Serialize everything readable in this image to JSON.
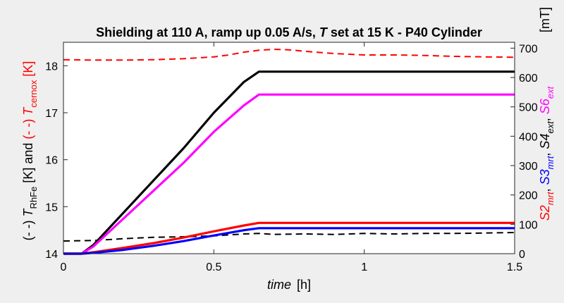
{
  "chart_data": {
    "type": "line",
    "title": {
      "pre": "Shielding at 110 A, ramp up 0.05 A/s, ",
      "italic": "T",
      "post": " set at 15 K - P40 Cylinder"
    },
    "xlabel": {
      "italic": "time",
      "unit": "[h]"
    },
    "xlim": [
      0,
      1.5
    ],
    "xticks": [
      0,
      0.5,
      1,
      1.5
    ],
    "xtick_labels": [
      "0",
      "0.5",
      "1",
      "1.5"
    ],
    "left_axis": {
      "label_parts": [
        {
          "text": "(- -) ",
          "color": "#000000",
          "italic": false
        },
        {
          "text": "T",
          "color": "#000000",
          "italic": true
        },
        {
          "text": "RhFe",
          "color": "#000000",
          "italic": false,
          "sub": true
        },
        {
          "text": " [K] and ",
          "color": "#000000",
          "italic": false
        },
        {
          "text": "(- -) ",
          "color": "#ff0000",
          "italic": false
        },
        {
          "text": "T",
          "color": "#ff0000",
          "italic": true
        },
        {
          "text": "cernox",
          "color": "#ff0000",
          "italic": false,
          "sub": true
        },
        {
          "text": " [K]",
          "color": "#ff0000",
          "italic": false
        }
      ],
      "ylim": [
        14,
        18.5
      ],
      "yticks": [
        14,
        15,
        16,
        17,
        18
      ],
      "ytick_labels": [
        "14",
        "15",
        "16",
        "17",
        "18"
      ]
    },
    "right_axis": {
      "unit_label": "[mT]",
      "label_parts": [
        {
          "text": "S2",
          "color": "#ff0000",
          "italic": true
        },
        {
          "text": "mrt",
          "color": "#ff0000",
          "italic": true,
          "sub": true
        },
        {
          "text": ", ",
          "color": "#000000",
          "italic": false
        },
        {
          "text": "S3",
          "color": "#0000ff",
          "italic": true
        },
        {
          "text": "mrt",
          "color": "#0000ff",
          "italic": true,
          "sub": true
        },
        {
          "text": ", ",
          "color": "#000000",
          "italic": false
        },
        {
          "text": "S4",
          "color": "#000000",
          "italic": true
        },
        {
          "text": "ext",
          "color": "#000000",
          "italic": true,
          "sub": true
        },
        {
          "text": ", ",
          "color": "#000000",
          "italic": false
        },
        {
          "text": "S6",
          "color": "#ff00ff",
          "italic": true
        },
        {
          "text": "ext",
          "color": "#ff00ff",
          "italic": true,
          "sub": true
        }
      ],
      "ylim": [
        0,
        720
      ],
      "yticks": [
        0,
        100,
        200,
        300,
        400,
        500,
        600,
        700
      ],
      "ytick_labels": [
        "0",
        "100",
        "200",
        "300",
        "400",
        "500",
        "600",
        "700"
      ]
    },
    "grid": false,
    "series": [
      {
        "axis": "left",
        "style": "dashed",
        "color": "#ff0000",
        "x": [
          0,
          0.1,
          0.2,
          0.3,
          0.4,
          0.5,
          0.55,
          0.6,
          0.65,
          0.7,
          0.75,
          0.8,
          0.9,
          1.0,
          1.1,
          1.2,
          1.3,
          1.4,
          1.5
        ],
        "y": [
          18.13,
          18.12,
          18.12,
          18.13,
          18.15,
          18.19,
          18.23,
          18.29,
          18.33,
          18.35,
          18.34,
          18.31,
          18.26,
          18.23,
          18.23,
          18.22,
          18.2,
          18.19,
          18.18
        ]
      },
      {
        "axis": "left",
        "style": "dashed",
        "color": "#000000",
        "x": [
          0,
          0.1,
          0.2,
          0.3,
          0.4,
          0.5,
          0.6,
          0.65,
          0.7,
          0.8,
          0.9,
          1.0,
          1.1,
          1.2,
          1.3,
          1.4,
          1.5
        ],
        "y": [
          14.27,
          14.28,
          14.32,
          14.35,
          14.36,
          14.38,
          14.42,
          14.43,
          14.41,
          14.42,
          14.41,
          14.43,
          14.42,
          14.43,
          14.43,
          14.44,
          14.45
        ]
      },
      {
        "axis": "right",
        "style": "solid",
        "color": "#000000",
        "x": [
          0,
          0.06,
          0.1,
          0.2,
          0.3,
          0.4,
          0.5,
          0.6,
          0.65,
          1.5
        ],
        "y": [
          0,
          0,
          30,
          140,
          250,
          360,
          480,
          585,
          620,
          620
        ]
      },
      {
        "axis": "right",
        "style": "solid",
        "color": "#ff00ff",
        "x": [
          0,
          0.06,
          0.1,
          0.2,
          0.3,
          0.4,
          0.5,
          0.6,
          0.65,
          1.5
        ],
        "y": [
          0,
          0,
          25,
          120,
          215,
          310,
          415,
          505,
          542,
          542
        ]
      },
      {
        "axis": "right",
        "style": "solid",
        "color": "#ff0000",
        "x": [
          0,
          0.06,
          0.1,
          0.2,
          0.3,
          0.4,
          0.5,
          0.6,
          0.65,
          1.5
        ],
        "y": [
          0,
          0,
          5,
          20,
          36,
          55,
          76,
          96,
          105,
          105
        ]
      },
      {
        "axis": "right",
        "style": "solid",
        "color": "#0000ff",
        "x": [
          0,
          0.06,
          0.1,
          0.2,
          0.3,
          0.4,
          0.5,
          0.6,
          0.65,
          1.5
        ],
        "y": [
          0,
          0,
          3,
          13,
          27,
          43,
          62,
          80,
          87,
          87
        ]
      }
    ]
  }
}
